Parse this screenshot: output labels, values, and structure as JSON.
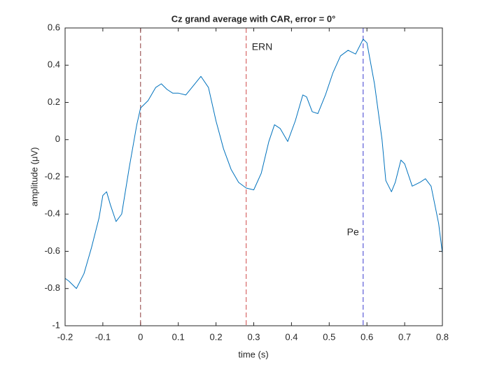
{
  "chart_data": {
    "type": "line",
    "title": "Cz grand average with CAR, error = 0°",
    "x_label": "time (s)",
    "y_label": "amplitude (μV)",
    "x": [
      -0.2,
      -0.19,
      -0.17,
      -0.15,
      -0.13,
      -0.11,
      -0.1,
      -0.09,
      -0.08,
      -0.065,
      -0.05,
      -0.03,
      -0.01,
      0,
      0.02,
      0.04,
      0.055,
      0.07,
      0.085,
      0.1,
      0.12,
      0.14,
      0.16,
      0.18,
      0.2,
      0.22,
      0.24,
      0.26,
      0.28,
      0.3,
      0.32,
      0.34,
      0.355,
      0.37,
      0.39,
      0.41,
      0.43,
      0.44,
      0.455,
      0.47,
      0.49,
      0.51,
      0.53,
      0.55,
      0.57,
      0.59,
      0.6,
      0.62,
      0.64,
      0.65,
      0.665,
      0.675,
      0.69,
      0.7,
      0.72,
      0.74,
      0.755,
      0.77,
      0.79,
      0.8
    ],
    "series": [
      {
        "color": "#0072bd",
        "values": [
          -0.745,
          -0.76,
          -0.8,
          -0.72,
          -0.58,
          -0.42,
          -0.3,
          -0.28,
          -0.35,
          -0.44,
          -0.4,
          -0.15,
          0.08,
          0.17,
          0.21,
          0.28,
          0.3,
          0.27,
          0.25,
          0.25,
          0.24,
          0.29,
          0.34,
          0.28,
          0.1,
          -0.05,
          -0.16,
          -0.23,
          -0.26,
          -0.27,
          -0.18,
          -0.01,
          0.08,
          0.06,
          -0.01,
          0.1,
          0.24,
          0.23,
          0.15,
          0.14,
          0.24,
          0.36,
          0.45,
          0.48,
          0.46,
          0.54,
          0.52,
          0.3,
          0.0,
          -0.22,
          -0.28,
          -0.23,
          -0.11,
          -0.13,
          -0.25,
          -0.23,
          -0.21,
          -0.25,
          -0.45,
          -0.61
        ]
      }
    ],
    "vlines": [
      {
        "x": 0,
        "color": "#8b3a3a"
      },
      {
        "x": 0.28,
        "color": "#d04848"
      },
      {
        "x": 0.59,
        "color": "#3a3ad0"
      }
    ],
    "annotations": [
      "ERN",
      "Pe"
    ],
    "xlim": [
      -0.2,
      0.8
    ],
    "ylim": [
      -1,
      0.6
    ],
    "xticks": [
      -0.2,
      -0.1,
      0,
      0.1,
      0.2,
      0.3,
      0.4,
      0.5,
      0.6,
      0.7,
      0.8
    ],
    "yticks": [
      -1,
      -0.8,
      -0.6,
      -0.4,
      -0.2,
      0,
      0.2,
      0.4,
      0.6
    ]
  }
}
